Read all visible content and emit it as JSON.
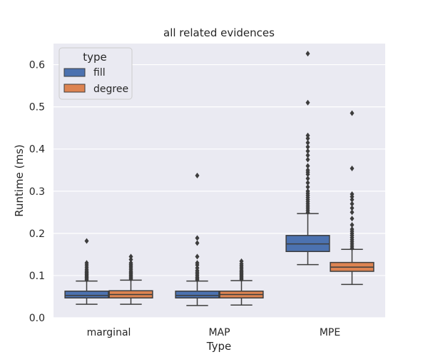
{
  "chart_data": {
    "type": "box",
    "title": "all related evidences",
    "xlabel": "Type",
    "ylabel": "Runtime (ms)",
    "ylim": [
      0,
      0.65
    ],
    "yticks": [
      "0.0",
      "0.1",
      "0.2",
      "0.3",
      "0.4",
      "0.5",
      "0.6"
    ],
    "categories": [
      "marginal",
      "MAP",
      "MPE"
    ],
    "grid": true,
    "legend": {
      "title": "type",
      "placement": "top-left"
    },
    "series": [
      {
        "name": "fill",
        "color": "#4c72b0",
        "boxes": [
          {
            "whislo": 0.032,
            "q1": 0.047,
            "med": 0.053,
            "q3": 0.063,
            "whishi": 0.087,
            "fliers": [
              0.09,
              0.093,
              0.096,
              0.099,
              0.102,
              0.105,
              0.108,
              0.111,
              0.115,
              0.12,
              0.125,
              0.13,
              0.182
            ]
          },
          {
            "whislo": 0.029,
            "q1": 0.047,
            "med": 0.053,
            "q3": 0.063,
            "whishi": 0.087,
            "fliers": [
              0.09,
              0.093,
              0.096,
              0.1,
              0.104,
              0.108,
              0.112,
              0.118,
              0.125,
              0.13,
              0.145,
              0.177,
              0.189,
              0.337
            ]
          },
          {
            "whislo": 0.126,
            "q1": 0.157,
            "med": 0.175,
            "q3": 0.195,
            "whishi": 0.247,
            "fliers": [
              0.25,
              0.255,
              0.26,
              0.265,
              0.27,
              0.275,
              0.28,
              0.285,
              0.29,
              0.295,
              0.3,
              0.31,
              0.32,
              0.33,
              0.34,
              0.345,
              0.35,
              0.36,
              0.375,
              0.385,
              0.395,
              0.405,
              0.415,
              0.425,
              0.432,
              0.51,
              0.626
            ]
          }
        ]
      },
      {
        "name": "degree",
        "color": "#dd8452",
        "boxes": [
          {
            "whislo": 0.032,
            "q1": 0.047,
            "med": 0.055,
            "q3": 0.064,
            "whishi": 0.089,
            "fliers": [
              0.092,
              0.095,
              0.098,
              0.101,
              0.104,
              0.107,
              0.11,
              0.114,
              0.118,
              0.122,
              0.126,
              0.13,
              0.138,
              0.145
            ]
          },
          {
            "whislo": 0.03,
            "q1": 0.047,
            "med": 0.055,
            "q3": 0.063,
            "whishi": 0.088,
            "fliers": [
              0.091,
              0.094,
              0.097,
              0.1,
              0.103,
              0.106,
              0.109,
              0.112,
              0.116,
              0.12,
              0.124,
              0.128,
              0.134
            ]
          },
          {
            "whislo": 0.079,
            "q1": 0.11,
            "med": 0.12,
            "q3": 0.131,
            "whishi": 0.162,
            "fliers": [
              0.165,
              0.17,
              0.175,
              0.18,
              0.185,
              0.19,
              0.195,
              0.2,
              0.205,
              0.21,
              0.22,
              0.235,
              0.25,
              0.26,
              0.27,
              0.28,
              0.287,
              0.293,
              0.354,
              0.485
            ]
          }
        ]
      }
    ]
  }
}
